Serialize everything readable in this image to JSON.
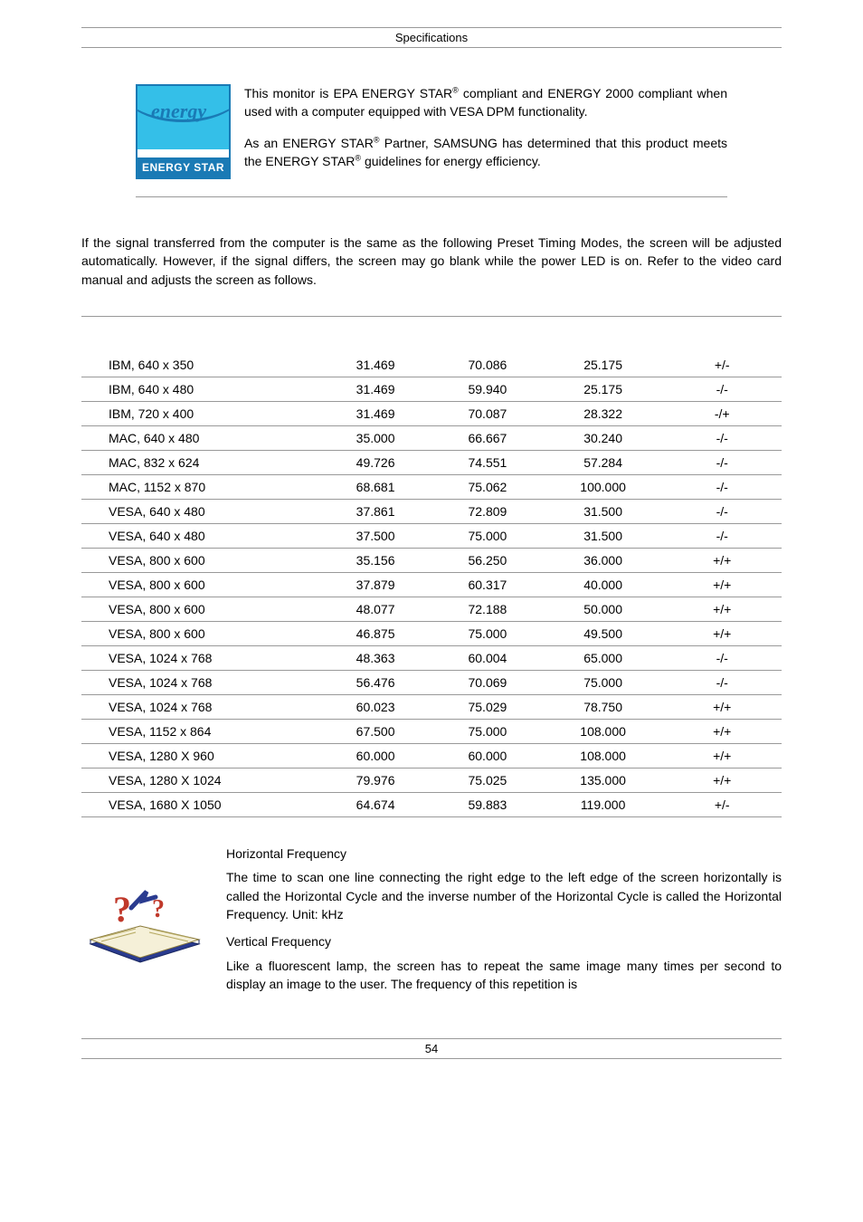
{
  "header_title": "Specifications",
  "energy": {
    "script_text": "energy",
    "label": "ENERGY STAR"
  },
  "top_para_1_parts": {
    "a": "This monitor is EPA ENERGY STAR",
    "b": " compliant and ENERGY 2000 compliant when used with a computer equipped with VESA DPM functionality."
  },
  "top_para_2_parts": {
    "a": "As an ENERGY STAR",
    "b": " Partner, SAMSUNG has determined that this product meets the ENERGY STAR",
    "c": " guidelines for energy efficiency."
  },
  "intro": "If the signal transferred from the computer is the same as the following Preset Timing Modes, the screen will be adjusted automatically. However, if the signal differs, the screen may go blank while the power LED is on. Refer to the video card manual and adjusts the screen as follows.",
  "table": {
    "rows": [
      [
        "IBM, 640 x 350",
        "31.469",
        "70.086",
        "25.175",
        "+/-"
      ],
      [
        "IBM, 640 x 480",
        "31.469",
        "59.940",
        "25.175",
        "-/-"
      ],
      [
        "IBM, 720 x 400",
        "31.469",
        "70.087",
        "28.322",
        "-/+"
      ],
      [
        "MAC, 640 x 480",
        "35.000",
        "66.667",
        "30.240",
        "-/-"
      ],
      [
        "MAC, 832 x 624",
        "49.726",
        "74.551",
        "57.284",
        "-/-"
      ],
      [
        "MAC, 1152 x 870",
        "68.681",
        "75.062",
        "100.000",
        "-/-"
      ],
      [
        "VESA, 640 x 480",
        "37.861",
        "72.809",
        "31.500",
        "-/-"
      ],
      [
        "VESA, 640 x 480",
        "37.500",
        "75.000",
        "31.500",
        "-/-"
      ],
      [
        "VESA, 800 x 600",
        "35.156",
        "56.250",
        "36.000",
        "+/+"
      ],
      [
        "VESA, 800 x 600",
        "37.879",
        "60.317",
        "40.000",
        "+/+"
      ],
      [
        "VESA, 800 x 600",
        "48.077",
        "72.188",
        "50.000",
        "+/+"
      ],
      [
        "VESA, 800 x 600",
        "46.875",
        "75.000",
        "49.500",
        "+/+"
      ],
      [
        "VESA, 1024 x 768",
        "48.363",
        "60.004",
        "65.000",
        "-/-"
      ],
      [
        "VESA, 1024 x 768",
        "56.476",
        "70.069",
        "75.000",
        "-/-"
      ],
      [
        "VESA, 1024 x 768",
        "60.023",
        "75.029",
        "78.750",
        "+/+"
      ],
      [
        "VESA, 1152 x 864",
        "67.500",
        "75.000",
        "108.000",
        "+/+"
      ],
      [
        "VESA, 1280 X 960",
        "60.000",
        "60.000",
        "108.000",
        "+/+"
      ],
      [
        "VESA, 1280 X 1024",
        "79.976",
        "75.025",
        "135.000",
        "+/+"
      ],
      [
        "VESA, 1680 X 1050",
        "64.674",
        "59.883",
        "119.000",
        "+/-"
      ]
    ],
    "col_widths": [
      "34%",
      "16%",
      "16%",
      "17%",
      "17%"
    ]
  },
  "definitions": {
    "hf_title": "Horizontal Frequency",
    "hf_body": "The time to scan one line connecting the right edge to the left edge of the screen horizontally is called the Horizontal Cycle and the inverse number of the Horizontal Cycle is called the Horizontal Frequency. Unit: kHz",
    "vf_title": "Vertical Frequency",
    "vf_body": "Like a fluorescent lamp, the screen has to repeat the same image many times per second to display an image to the user. The frequency of this repetition is"
  },
  "page_number": "54",
  "colors": {
    "logo_border": "#1a7ab5",
    "logo_bg": "#34bfe8",
    "rule": "#999999"
  }
}
